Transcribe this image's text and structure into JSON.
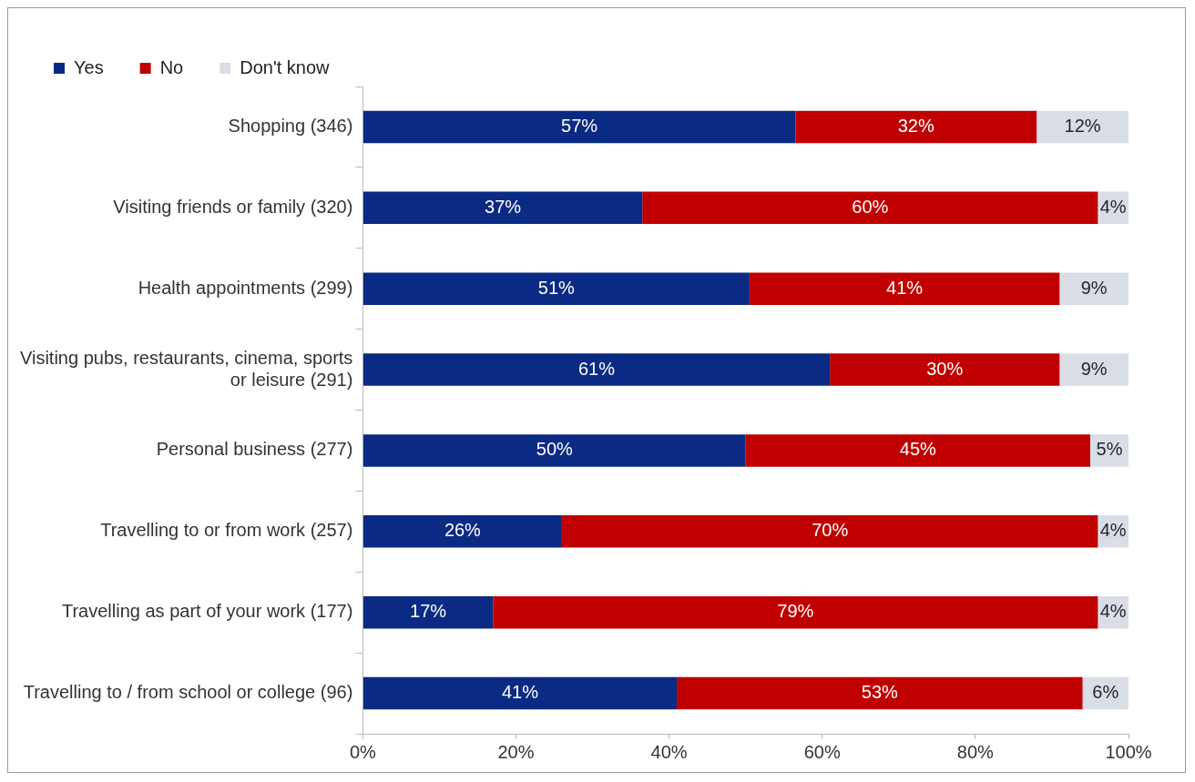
{
  "chart_data": {
    "type": "bar",
    "orientation": "horizontal",
    "stacked": true,
    "categories": [
      "Shopping (346)",
      "Visiting friends or family (320)",
      "Health appointments (299)",
      "Visiting pubs, restaurants, cinema, sports or leisure (291)",
      "Personal business (277)",
      "Travelling to or from work (257)",
      "Travelling as part of your work (177)",
      "Travelling to / from school or college (96)"
    ],
    "series": [
      {
        "name": "Yes",
        "color": "#0b2a84",
        "values": [
          56.5,
          36.5,
          50.5,
          61,
          50,
          26,
          17,
          41
        ],
        "value_labels": [
          "57%",
          "37%",
          "51%",
          "61%",
          "50%",
          "26%",
          "17%",
          "41%"
        ]
      },
      {
        "name": "No",
        "color": "#c00000",
        "values": [
          31.5,
          59.5,
          40.5,
          30,
          45,
          70,
          79,
          53
        ],
        "value_labels": [
          "32%",
          "60%",
          "41%",
          "30%",
          "45%",
          "70%",
          "79%",
          "53%"
        ]
      },
      {
        "name": "Don't know",
        "color": "#d9dde6",
        "values": [
          12,
          4,
          9,
          9,
          5,
          4,
          4,
          6
        ],
        "value_labels": [
          "12%",
          "4%",
          "9%",
          "9%",
          "5%",
          "4%",
          "4%",
          "6%"
        ]
      }
    ],
    "xlim": [
      0,
      100
    ],
    "xticks": [
      {
        "value": 0,
        "label": "0%"
      },
      {
        "value": 20,
        "label": "20%"
      },
      {
        "value": 40,
        "label": "40%"
      },
      {
        "value": 60,
        "label": "60%"
      },
      {
        "value": 80,
        "label": "80%"
      },
      {
        "value": 100,
        "label": "100%"
      }
    ],
    "grid": false,
    "legend": "top"
  }
}
